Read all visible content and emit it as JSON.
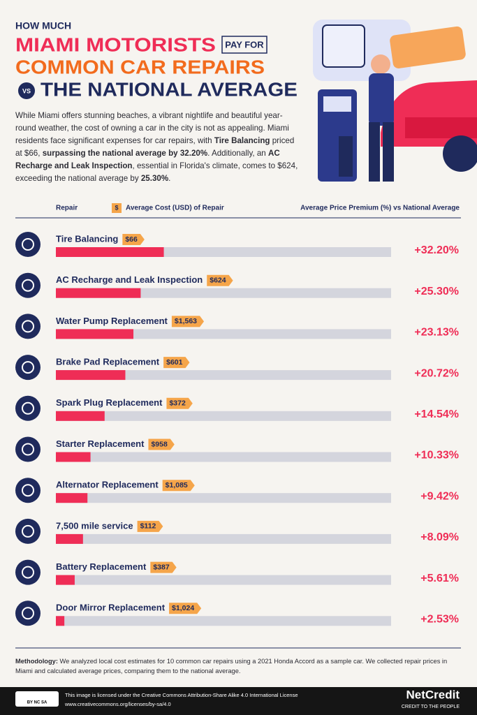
{
  "header": {
    "line1": "HOW MUCH",
    "line2": "MIAMI MOTORISTS",
    "tag": "PAY FOR",
    "line3": "COMMON CAR REPAIRS",
    "vs": "VS",
    "line4": "THE NATIONAL AVERAGE"
  },
  "intro": [
    {
      "text": "While Miami offers stunning beaches, a vibrant nightlife and beautiful year-round weather, the cost of owning a car in the city is not as appealing. Miami residents face significant expenses for car repairs, with ",
      "bold": false
    },
    {
      "text": "Tire Balancing",
      "bold": true
    },
    {
      "text": " priced at $66, ",
      "bold": false
    },
    {
      "text": "surpassing the national average by 32.20%",
      "bold": true
    },
    {
      "text": ". Additionally, an ",
      "bold": false
    },
    {
      "text": "AC Recharge and Leak Inspection",
      "bold": true
    },
    {
      "text": ", essential in Florida's climate, comes to $624, exceeding the national average by ",
      "bold": false
    },
    {
      "text": "25.30%",
      "bold": true
    },
    {
      "text": ".",
      "bold": false
    }
  ],
  "columns": {
    "repair": "Repair",
    "cost_icon": "$",
    "cost": "Average Cost (USD) of Repair",
    "premium": "Average Price Premium (%) vs National Average"
  },
  "chart_data": {
    "type": "bar",
    "orientation": "horizontal",
    "categories": [
      "Tire Balancing",
      "AC Recharge and Leak Inspection",
      "Water Pump Replacement",
      "Brake Pad Replacement",
      "Spark Plug Replacement",
      "Starter Replacement",
      "Alternator Replacement",
      "7,500 mile service",
      "Battery Replacement",
      "Door Mirror Replacement"
    ],
    "costs": [
      "$66",
      "$624",
      "$1,563",
      "$601",
      "$372",
      "$958",
      "$1,085",
      "$112",
      "$387",
      "$1,024"
    ],
    "values": [
      32.2,
      25.3,
      23.13,
      20.72,
      14.54,
      10.33,
      9.42,
      8.09,
      5.61,
      2.53
    ],
    "value_labels": [
      "+32.20%",
      "+25.30%",
      "+23.13%",
      "+20.72%",
      "+14.54%",
      "+10.33%",
      "+9.42%",
      "+8.09%",
      "+5.61%",
      "+2.53%"
    ],
    "color": "#ef2d56",
    "track_color": "#d4d5dd",
    "xlim": [
      0,
      100
    ]
  },
  "methodology": {
    "label": "Methodology:",
    "text": " We analyzed local cost estimates for 10 common car repairs using a 2021 Honda Accord as a sample car. We collected repair prices in Miami and calculated average prices, comparing them to the national average."
  },
  "footer": {
    "badge": "BY NC SA",
    "license": "This image is licensed under the Creative Commons Attribution-Share Alike 4.0 International License",
    "url": "www.creativecommons.org/licenses/by-sa/4.0",
    "brand": "NetCredit",
    "tagline": "CREDIT TO THE PEOPLE"
  }
}
